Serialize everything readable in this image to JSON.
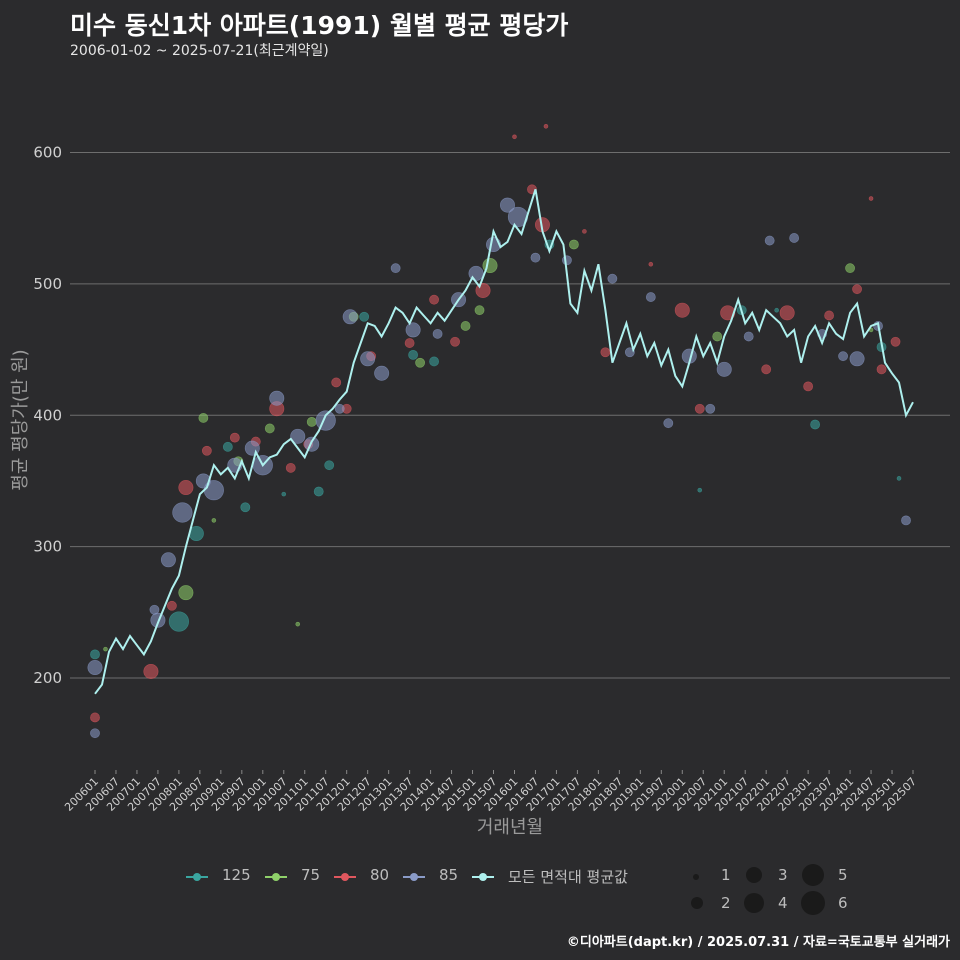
{
  "title": "미수 동신1차 아파트(1991) 월별 평균 평당가",
  "subtitle": "2006-01-02 ~ 2025-07-21(최근계약일)",
  "footer": "©디아파트(dapt.kr) / 2025.07.31 / 자료=국토교통부 실거래가",
  "colors": {
    "background": "#2b2b2d",
    "grid": "#6e6e6e",
    "avg_line": "#aef0ee",
    "s125": "#3aa6a0",
    "s75": "#8fd16a",
    "s80": "#e0575e",
    "s85": "#8a9bc8"
  },
  "chart_data": {
    "type": "scatter",
    "title": "미수 동신1차 아파트(1991) 월별 평균 평당가",
    "xlabel": "거래년월",
    "ylabel": "평균 평당가(만 원)",
    "ylim": [
      130,
      640
    ],
    "xlim": [
      "2006-01",
      "2025-07"
    ],
    "y_ticks": [
      200,
      300,
      400,
      500,
      600
    ],
    "x_ticks": [
      "200601",
      "200607",
      "200701",
      "200707",
      "200801",
      "200807",
      "200901",
      "200907",
      "201001",
      "201007",
      "201101",
      "201107",
      "201201",
      "201207",
      "201301",
      "201307",
      "201401",
      "201407",
      "201501",
      "201507",
      "201601",
      "201607",
      "201701",
      "201707",
      "201801",
      "201807",
      "201901",
      "201907",
      "202001",
      "202007",
      "202101",
      "202107",
      "202201",
      "202207",
      "202301",
      "202307",
      "202401",
      "202407",
      "202501",
      "202507"
    ],
    "grid": "horizontal",
    "legend": {
      "position": "bottom",
      "series": [
        "125",
        "75",
        "80",
        "85",
        "모든 면적대 평균값"
      ],
      "size_labels": [
        "1",
        "2",
        "3",
        "4",
        "5",
        "6"
      ]
    },
    "average_line": {
      "name": "모든 면적대 평균값",
      "anchors": [
        [
          "2006-01",
          188
        ],
        [
          "2006-03",
          195
        ],
        [
          "2006-05",
          220
        ],
        [
          "2006-07",
          230
        ],
        [
          "2006-09",
          222
        ],
        [
          "2006-11",
          232
        ],
        [
          "2007-01",
          225
        ],
        [
          "2007-03",
          218
        ],
        [
          "2007-05",
          228
        ],
        [
          "2007-07",
          242
        ],
        [
          "2007-09",
          255
        ],
        [
          "2007-11",
          268
        ],
        [
          "2008-01",
          278
        ],
        [
          "2008-03",
          300
        ],
        [
          "2008-05",
          320
        ],
        [
          "2008-07",
          340
        ],
        [
          "2008-09",
          345
        ],
        [
          "2008-11",
          362
        ],
        [
          "2009-01",
          355
        ],
        [
          "2009-03",
          360
        ],
        [
          "2009-05",
          352
        ],
        [
          "2009-07",
          365
        ],
        [
          "2009-09",
          352
        ],
        [
          "2009-11",
          372
        ],
        [
          "2010-01",
          362
        ],
        [
          "2010-03",
          368
        ],
        [
          "2010-05",
          370
        ],
        [
          "2010-07",
          378
        ],
        [
          "2010-09",
          382
        ],
        [
          "2010-11",
          375
        ],
        [
          "2011-01",
          368
        ],
        [
          "2011-03",
          380
        ],
        [
          "2011-05",
          388
        ],
        [
          "2011-07",
          400
        ],
        [
          "2011-09",
          405
        ],
        [
          "2011-11",
          412
        ],
        [
          "2012-01",
          418
        ],
        [
          "2012-03",
          440
        ],
        [
          "2012-05",
          455
        ],
        [
          "2012-07",
          470
        ],
        [
          "2012-09",
          468
        ],
        [
          "2012-11",
          460
        ],
        [
          "2013-01",
          470
        ],
        [
          "2013-03",
          482
        ],
        [
          "2013-05",
          478
        ],
        [
          "2013-07",
          470
        ],
        [
          "2013-09",
          482
        ],
        [
          "2013-11",
          476
        ],
        [
          "2014-01",
          470
        ],
        [
          "2014-03",
          478
        ],
        [
          "2014-05",
          472
        ],
        [
          "2014-07",
          480
        ],
        [
          "2014-09",
          488
        ],
        [
          "2014-11",
          495
        ],
        [
          "2015-01",
          505
        ],
        [
          "2015-03",
          498
        ],
        [
          "2015-05",
          512
        ],
        [
          "2015-07",
          540
        ],
        [
          "2015-09",
          528
        ],
        [
          "2015-11",
          532
        ],
        [
          "2016-01",
          545
        ],
        [
          "2016-03",
          538
        ],
        [
          "2016-05",
          555
        ],
        [
          "2016-07",
          572
        ],
        [
          "2016-09",
          540
        ],
        [
          "2016-11",
          525
        ],
        [
          "2017-01",
          540
        ],
        [
          "2017-03",
          530
        ],
        [
          "2017-05",
          485
        ],
        [
          "2017-07",
          478
        ],
        [
          "2017-09",
          510
        ],
        [
          "2017-11",
          495
        ],
        [
          "2018-01",
          515
        ],
        [
          "2018-03",
          480
        ],
        [
          "2018-05",
          440
        ],
        [
          "2018-07",
          455
        ],
        [
          "2018-09",
          470
        ],
        [
          "2018-11",
          450
        ],
        [
          "2019-01",
          462
        ],
        [
          "2019-03",
          445
        ],
        [
          "2019-05",
          455
        ],
        [
          "2019-07",
          438
        ],
        [
          "2019-09",
          450
        ],
        [
          "2019-11",
          430
        ],
        [
          "2020-01",
          422
        ],
        [
          "2020-03",
          440
        ],
        [
          "2020-05",
          460
        ],
        [
          "2020-07",
          445
        ],
        [
          "2020-09",
          455
        ],
        [
          "2020-11",
          440
        ],
        [
          "2021-01",
          460
        ],
        [
          "2021-03",
          472
        ],
        [
          "2021-05",
          488
        ],
        [
          "2021-07",
          470
        ],
        [
          "2021-09",
          478
        ],
        [
          "2021-11",
          465
        ],
        [
          "2022-01",
          480
        ],
        [
          "2022-03",
          475
        ],
        [
          "2022-05",
          470
        ],
        [
          "2022-07",
          460
        ],
        [
          "2022-09",
          465
        ],
        [
          "2022-11",
          440
        ],
        [
          "2023-01",
          460
        ],
        [
          "2023-03",
          468
        ],
        [
          "2023-05",
          455
        ],
        [
          "2023-07",
          470
        ],
        [
          "2023-09",
          462
        ],
        [
          "2023-11",
          458
        ],
        [
          "2024-01",
          478
        ],
        [
          "2024-03",
          485
        ],
        [
          "2024-05",
          460
        ],
        [
          "2024-07",
          468
        ],
        [
          "2024-09",
          470
        ],
        [
          "2024-11",
          440
        ],
        [
          "2025-01",
          432
        ],
        [
          "2025-03",
          425
        ],
        [
          "2025-05",
          400
        ],
        [
          "2025-07",
          410
        ]
      ]
    },
    "series": [
      {
        "name": "125",
        "points": [
          [
            "2006-01",
            218,
            2
          ],
          [
            "2008-01",
            243,
            4
          ],
          [
            "2008-06",
            310,
            3
          ],
          [
            "2009-03",
            376,
            2
          ],
          [
            "2009-08",
            330,
            2
          ],
          [
            "2010-07",
            340,
            1
          ],
          [
            "2011-05",
            342,
            2
          ],
          [
            "2011-08",
            362,
            2
          ],
          [
            "2012-06",
            475,
            2
          ],
          [
            "2013-08",
            446,
            2
          ],
          [
            "2014-02",
            441,
            2
          ],
          [
            "2016-11",
            530,
            2
          ],
          [
            "2020-06",
            343,
            1
          ],
          [
            "2021-06",
            480,
            2
          ],
          [
            "2022-04",
            480,
            1
          ],
          [
            "2023-03",
            393,
            2
          ],
          [
            "2024-10",
            452,
            2
          ],
          [
            "2025-03",
            352,
            1
          ]
        ]
      },
      {
        "name": "75",
        "points": [
          [
            "2008-03",
            265,
            3
          ],
          [
            "2008-08",
            398,
            2
          ],
          [
            "2009-06",
            365,
            2
          ],
          [
            "2010-03",
            390,
            2
          ],
          [
            "2010-11",
            241,
            1
          ],
          [
            "2011-03",
            395,
            2
          ],
          [
            "2012-03",
            475,
            2
          ],
          [
            "2013-10",
            440,
            2
          ],
          [
            "2014-11",
            468,
            2
          ],
          [
            "2015-03",
            480,
            2
          ],
          [
            "2015-06",
            514,
            3
          ],
          [
            "2017-06",
            530,
            2
          ],
          [
            "2020-11",
            460,
            2
          ],
          [
            "2024-01",
            512,
            2
          ],
          [
            "2024-07",
            465,
            1
          ],
          [
            "2006-04",
            222,
            1
          ],
          [
            "2008-11",
            320,
            1
          ]
        ]
      },
      {
        "name": "80",
        "points": [
          [
            "2006-01",
            170,
            2
          ],
          [
            "2007-05",
            205,
            3
          ],
          [
            "2007-11",
            255,
            2
          ],
          [
            "2008-03",
            345,
            3
          ],
          [
            "2008-09",
            373,
            2
          ],
          [
            "2009-05",
            383,
            2
          ],
          [
            "2009-11",
            380,
            2
          ],
          [
            "2010-05",
            405,
            3
          ],
          [
            "2010-09",
            360,
            2
          ],
          [
            "2011-02",
            378,
            2
          ],
          [
            "2011-10",
            425,
            2
          ],
          [
            "2012-01",
            405,
            2
          ],
          [
            "2012-08",
            445,
            2
          ],
          [
            "2013-07",
            455,
            2
          ],
          [
            "2014-02",
            488,
            2
          ],
          [
            "2014-08",
            456,
            2
          ],
          [
            "2015-04",
            495,
            3
          ],
          [
            "2016-01",
            612,
            1
          ],
          [
            "2016-06",
            572,
            2
          ],
          [
            "2016-09",
            545,
            3
          ],
          [
            "2017-09",
            540,
            1
          ],
          [
            "2018-03",
            448,
            2
          ],
          [
            "2019-04",
            515,
            1
          ],
          [
            "2020-01",
            480,
            3
          ],
          [
            "2020-06",
            405,
            2
          ],
          [
            "2021-02",
            478,
            3
          ],
          [
            "2022-01",
            435,
            2
          ],
          [
            "2022-07",
            478,
            3
          ],
          [
            "2023-01",
            422,
            2
          ],
          [
            "2023-07",
            476,
            2
          ],
          [
            "2024-03",
            496,
            2
          ],
          [
            "2024-10",
            435,
            2
          ],
          [
            "2025-02",
            456,
            2
          ],
          [
            "2024-07",
            565,
            1
          ],
          [
            "2016-10",
            620,
            1
          ]
        ]
      },
      {
        "name": "85",
        "points": [
          [
            "2006-01",
            208,
            3
          ],
          [
            "2006-01",
            158,
            2
          ],
          [
            "2007-06",
            252,
            2
          ],
          [
            "2007-07",
            244,
            3
          ],
          [
            "2007-10",
            290,
            3
          ],
          [
            "2008-02",
            326,
            4
          ],
          [
            "2008-08",
            350,
            3
          ],
          [
            "2008-11",
            343,
            4
          ],
          [
            "2009-05",
            362,
            3
          ],
          [
            "2009-10",
            375,
            3
          ],
          [
            "2010-01",
            362,
            4
          ],
          [
            "2010-05",
            413,
            3
          ],
          [
            "2010-11",
            384,
            3
          ],
          [
            "2011-03",
            378,
            3
          ],
          [
            "2011-07",
            396,
            4
          ],
          [
            "2011-11",
            405,
            2
          ],
          [
            "2012-02",
            475,
            3
          ],
          [
            "2012-07",
            443,
            3
          ],
          [
            "2012-11",
            432,
            3
          ],
          [
            "2013-03",
            512,
            2
          ],
          [
            "2013-08",
            465,
            3
          ],
          [
            "2014-03",
            462,
            2
          ],
          [
            "2014-09",
            488,
            3
          ],
          [
            "2015-02",
            508,
            3
          ],
          [
            "2015-07",
            530,
            3
          ],
          [
            "2015-11",
            560,
            3
          ],
          [
            "2016-02",
            551,
            4
          ],
          [
            "2016-07",
            520,
            2
          ],
          [
            "2017-04",
            518,
            2
          ],
          [
            "2018-05",
            504,
            2
          ],
          [
            "2018-10",
            448,
            2
          ],
          [
            "2019-04",
            490,
            2
          ],
          [
            "2019-09",
            394,
            2
          ],
          [
            "2020-03",
            445,
            3
          ],
          [
            "2020-09",
            405,
            2
          ],
          [
            "2021-01",
            435,
            3
          ],
          [
            "2021-08",
            460,
            2
          ],
          [
            "2022-02",
            533,
            2
          ],
          [
            "2022-09",
            535,
            2
          ],
          [
            "2023-05",
            462,
            2
          ],
          [
            "2023-11",
            445,
            2
          ],
          [
            "2024-03",
            443,
            3
          ],
          [
            "2024-09",
            468,
            2
          ],
          [
            "2025-05",
            320,
            2
          ]
        ]
      }
    ]
  }
}
